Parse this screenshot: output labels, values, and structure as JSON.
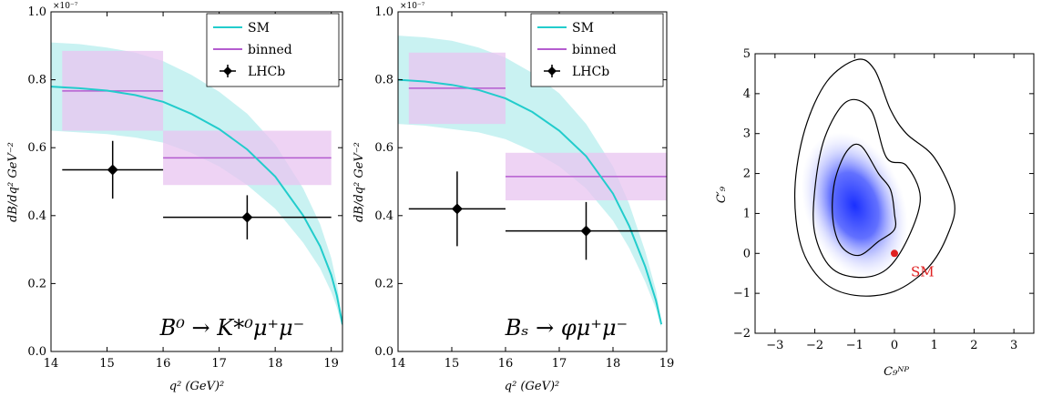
{
  "charts": [
    {
      "type": "line",
      "exponent_label": "×10⁻⁷",
      "xlabel": "q² (GeV)²",
      "ylabel": "dB/dq² GeV⁻²",
      "xlim": [
        14,
        19.2
      ],
      "ylim": [
        0.0,
        1.0
      ],
      "xticks": [
        "14",
        "15",
        "16",
        "17",
        "18",
        "19"
      ],
      "yticks": [
        "0.0",
        "0.2",
        "0.4",
        "0.6",
        "0.8",
        "1.0"
      ],
      "process_label": "B⁰ → K*⁰μ⁺μ⁻",
      "legend": [
        "SM",
        "binned",
        "LHCb"
      ],
      "legend_position": "top-right",
      "sm_curve": {
        "q2": [
          14.0,
          14.5,
          15.0,
          15.5,
          16.0,
          16.5,
          17.0,
          17.5,
          18.0,
          18.5,
          18.8,
          19.0,
          19.1,
          19.2
        ],
        "center": [
          0.78,
          0.775,
          0.768,
          0.755,
          0.735,
          0.7,
          0.655,
          0.595,
          0.515,
          0.4,
          0.31,
          0.225,
          0.165,
          0.08
        ],
        "upper": [
          0.91,
          0.905,
          0.895,
          0.88,
          0.855,
          0.815,
          0.765,
          0.7,
          0.61,
          0.48,
          0.375,
          0.275,
          0.2,
          0.09
        ],
        "lower": [
          0.65,
          0.645,
          0.64,
          0.63,
          0.615,
          0.585,
          0.545,
          0.49,
          0.42,
          0.32,
          0.245,
          0.175,
          0.13,
          0.07
        ]
      },
      "binned": [
        {
          "x0": 14.2,
          "x1": 16.0,
          "value": 0.767,
          "low": 0.65,
          "high": 0.885
        },
        {
          "x0": 16.0,
          "x1": 19.0,
          "value": 0.57,
          "low": 0.49,
          "high": 0.65
        }
      ],
      "lhcb": [
        {
          "x": 15.1,
          "xerr_low": 14.2,
          "xerr_high": 16.0,
          "y": 0.535,
          "ylow": 0.45,
          "yhigh": 0.62
        },
        {
          "x": 17.5,
          "xerr_low": 16.0,
          "xerr_high": 19.0,
          "y": 0.395,
          "ylow": 0.33,
          "yhigh": 0.46
        }
      ]
    },
    {
      "type": "line",
      "exponent_label": "×10⁻⁷",
      "xlabel": "q² (GeV)²",
      "ylabel": "dB/dq² GeV⁻²",
      "xlim": [
        14,
        19
      ],
      "ylim": [
        0.0,
        1.0
      ],
      "xticks": [
        "14",
        "15",
        "16",
        "17",
        "18",
        "19"
      ],
      "yticks": [
        "0.0",
        "0.2",
        "0.4",
        "0.6",
        "0.8",
        "1.0"
      ],
      "process_label": "Bₛ → φμ⁺μ⁻",
      "legend": [
        "SM",
        "binned",
        "LHCb"
      ],
      "legend_position": "top-right",
      "sm_curve": {
        "q2": [
          14.0,
          14.5,
          15.0,
          15.5,
          16.0,
          16.5,
          17.0,
          17.5,
          18.0,
          18.3,
          18.6,
          18.8,
          18.9
        ],
        "center": [
          0.8,
          0.795,
          0.785,
          0.77,
          0.745,
          0.705,
          0.65,
          0.575,
          0.465,
          0.37,
          0.25,
          0.15,
          0.08
        ],
        "upper": [
          0.93,
          0.925,
          0.915,
          0.895,
          0.865,
          0.82,
          0.76,
          0.67,
          0.545,
          0.435,
          0.295,
          0.18,
          0.09
        ],
        "lower": [
          0.67,
          0.665,
          0.655,
          0.645,
          0.625,
          0.59,
          0.545,
          0.48,
          0.385,
          0.305,
          0.205,
          0.125,
          0.07
        ]
      },
      "binned": [
        {
          "x0": 14.2,
          "x1": 16.0,
          "value": 0.775,
          "low": 0.67,
          "high": 0.88
        },
        {
          "x0": 16.0,
          "x1": 19.0,
          "value": 0.515,
          "low": 0.445,
          "high": 0.585
        }
      ],
      "lhcb": [
        {
          "x": 15.1,
          "xerr_low": 14.2,
          "xerr_high": 16.0,
          "y": 0.42,
          "ylow": 0.31,
          "yhigh": 0.53
        },
        {
          "x": 17.5,
          "xerr_low": 16.0,
          "xerr_high": 19.0,
          "y": 0.355,
          "ylow": 0.27,
          "yhigh": 0.44
        }
      ]
    },
    {
      "type": "heatmap",
      "xlabel": "C₉ᴺᴾ",
      "ylabel": "C′₉",
      "xlim": [
        -3.5,
        3.5
      ],
      "ylim": [
        -2,
        5
      ],
      "xticks": [
        "−3",
        "−2",
        "−1",
        "0",
        "1",
        "2",
        "3"
      ],
      "yticks": [
        "−2",
        "−1",
        "0",
        "1",
        "2",
        "3",
        "4",
        "5"
      ],
      "density_center": [
        -1.0,
        1.2
      ],
      "contours": [
        [
          [
            0.0,
            1.0
          ],
          [
            -0.1,
            1.6
          ],
          [
            -0.4,
            2.0
          ],
          [
            -0.85,
            2.7
          ],
          [
            -1.2,
            2.55
          ],
          [
            -1.5,
            1.8
          ],
          [
            -1.55,
            0.9
          ],
          [
            -1.35,
            0.2
          ],
          [
            -0.9,
            -0.05
          ],
          [
            -0.4,
            0.3
          ],
          [
            0.0,
            0.6
          ]
        ],
        [
          [
            0.65,
            1.4
          ],
          [
            0.3,
            2.2
          ],
          [
            -0.2,
            2.4
          ],
          [
            -0.6,
            3.6
          ],
          [
            -1.2,
            3.8
          ],
          [
            -1.75,
            2.9
          ],
          [
            -2.0,
            1.6
          ],
          [
            -2.0,
            0.5
          ],
          [
            -1.6,
            -0.35
          ],
          [
            -0.9,
            -0.6
          ],
          [
            -0.2,
            -0.4
          ],
          [
            0.35,
            0.4
          ]
        ],
        [
          [
            1.5,
            1.3
          ],
          [
            1.0,
            2.4
          ],
          [
            0.3,
            3.0
          ],
          [
            -0.1,
            3.6
          ],
          [
            -0.5,
            4.6
          ],
          [
            -0.95,
            4.85
          ],
          [
            -1.7,
            4.3
          ],
          [
            -2.25,
            3.1
          ],
          [
            -2.5,
            1.6
          ],
          [
            -2.35,
            0.2
          ],
          [
            -1.8,
            -0.7
          ],
          [
            -1.0,
            -1.05
          ],
          [
            0.0,
            -0.95
          ],
          [
            0.85,
            -0.35
          ],
          [
            1.35,
            0.5
          ]
        ]
      ],
      "sm_point": {
        "x": 0.0,
        "y": 0.0,
        "label": "SM"
      }
    }
  ],
  "colors": {
    "sm": "#22cccc",
    "band": "#bff0f0",
    "binned": "#b45ccf",
    "binned_box": "#e8c4f0",
    "lhcb": "#000000",
    "density": "#1a2fff",
    "sm_point": "#e02020"
  }
}
